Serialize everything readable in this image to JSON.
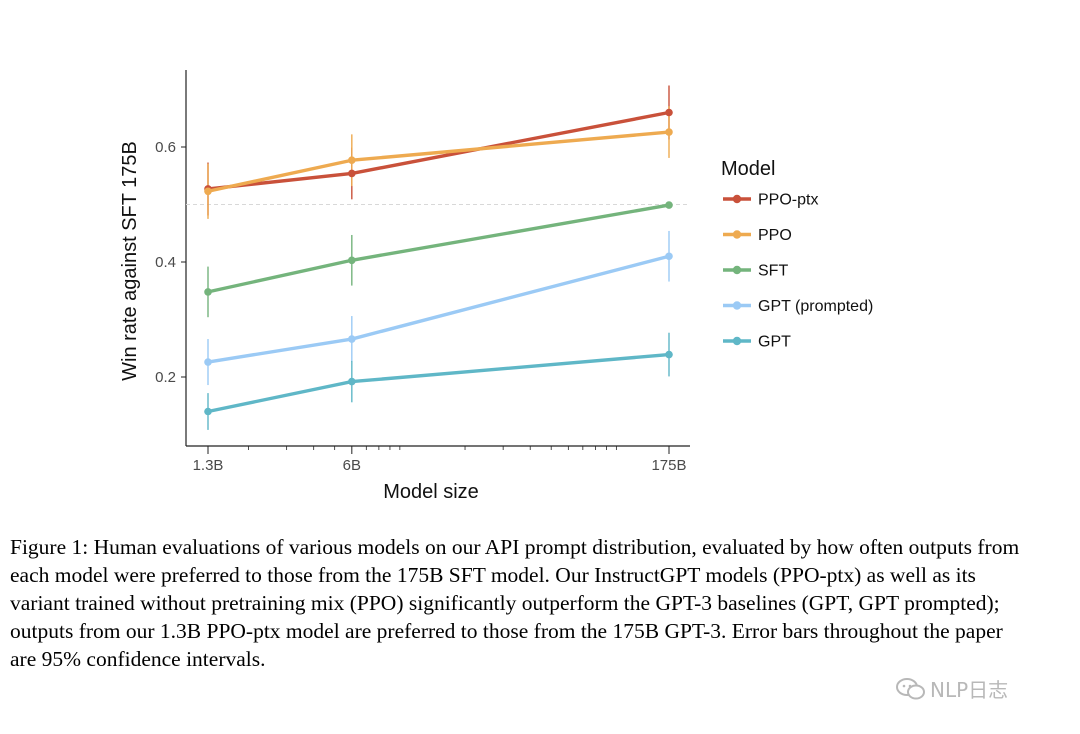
{
  "chart_data": {
    "type": "line",
    "x": [
      "1.3B",
      "6B",
      "175B"
    ],
    "xscale": "log",
    "xlabel": "Model size",
    "ylabel": "Win rate against SFT 175B",
    "yticks": [
      0.2,
      0.4,
      0.6
    ],
    "ylim": [
      0.1,
      0.73
    ],
    "reference_line": 0.5,
    "grid": false,
    "legend_title": "Model",
    "legend_position": "right",
    "series": [
      {
        "name": "PPO-ptx",
        "color": "#c9513a",
        "values": [
          0.527,
          0.554,
          0.66
        ],
        "errors": [
          0.046,
          0.045,
          0.047
        ]
      },
      {
        "name": "PPO",
        "color": "#eeaa50",
        "values": [
          0.523,
          0.577,
          0.626
        ],
        "errors": [
          0.048,
          0.045,
          0.045
        ]
      },
      {
        "name": "SFT",
        "color": "#74b47c",
        "values": [
          0.348,
          0.403,
          0.499
        ],
        "errors": [
          0.044,
          0.044,
          0.0
        ]
      },
      {
        "name": "GPT (prompted)",
        "color": "#9bcaf5",
        "values": [
          0.226,
          0.266,
          0.41
        ],
        "errors": [
          0.04,
          0.04,
          0.044
        ]
      },
      {
        "name": "GPT",
        "color": "#5fb7c7",
        "values": [
          0.14,
          0.192,
          0.239
        ],
        "errors": [
          0.032,
          0.036,
          0.038
        ]
      }
    ]
  },
  "caption": "Figure 1: Human evaluations of various models on our API prompt distribution, evaluated by how often outputs from each model were preferred to those from the 175B SFT model. Our InstructGPT models (PPO-ptx) as well as its variant trained without pretraining mix (PPO) significantly outperform the GPT-3 baselines (GPT, GPT prompted); outputs from our 1.3B PPO-ptx model are preferred to those from the 175B GPT-3. Error bars throughout the paper are 95% confidence intervals.",
  "watermark": {
    "text": "NLP日志",
    "icon": "wechat-icon"
  }
}
